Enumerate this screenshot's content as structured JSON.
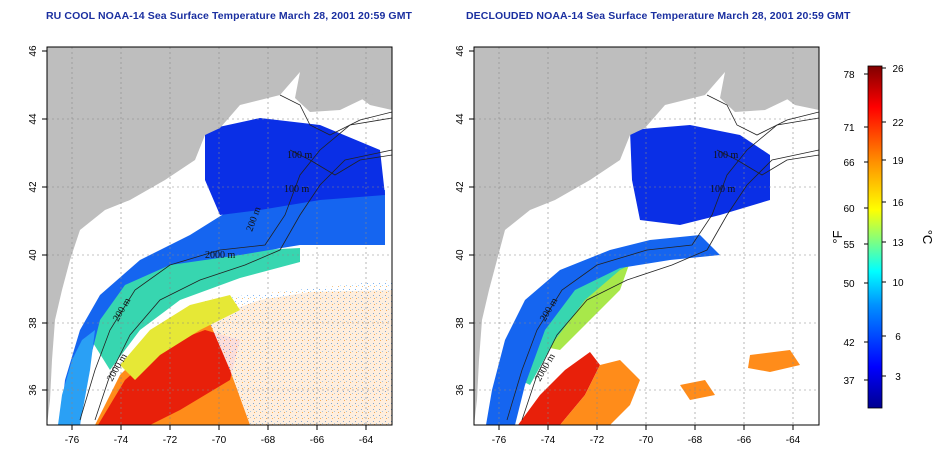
{
  "panels": [
    {
      "title": "RU COOL NOAA-14 Sea Surface Temperature March 28, 2001 20:59 GMT",
      "x_ticks": [
        "-76",
        "-74",
        "-72",
        "-70",
        "-68",
        "-66",
        "-64"
      ],
      "y_ticks": [
        "36",
        "38",
        "40",
        "42",
        "44",
        "46"
      ],
      "contour_labels": [
        "100 m",
        "100 m",
        "200 m",
        "2000 m",
        "200 m",
        "2000 m"
      ]
    },
    {
      "title": "DECLOUDED NOAA-14 Sea Surface Temperature March 28, 2001 20:59 GMT",
      "x_ticks": [
        "-76",
        "-74",
        "-72",
        "-70",
        "-68",
        "-66",
        "-64"
      ],
      "y_ticks": [
        "36",
        "38",
        "40",
        "42",
        "44",
        "46"
      ],
      "contour_labels": [
        "100 m",
        "100 m",
        "200 m",
        "2000 m"
      ]
    }
  ],
  "colorbar": {
    "fahrenheit_label": "°F",
    "celsius_label": "°C",
    "fahrenheit_ticks": [
      "78",
      "71",
      "66",
      "60",
      "55",
      "50",
      "42",
      "37"
    ],
    "celsius_ticks": [
      "26",
      "22",
      "19",
      "16",
      "13",
      "10",
      "6",
      "3"
    ],
    "range_celsius": [
      0,
      26
    ],
    "colors": [
      "#000090",
      "#0000ff",
      "#0090ff",
      "#00ffff",
      "#90ff70",
      "#ffff00",
      "#ff9000",
      "#ff0000",
      "#800000"
    ]
  },
  "colors": {
    "land": "#bebebe",
    "cloud": "#ffffff",
    "title": "#1a2fa0"
  }
}
